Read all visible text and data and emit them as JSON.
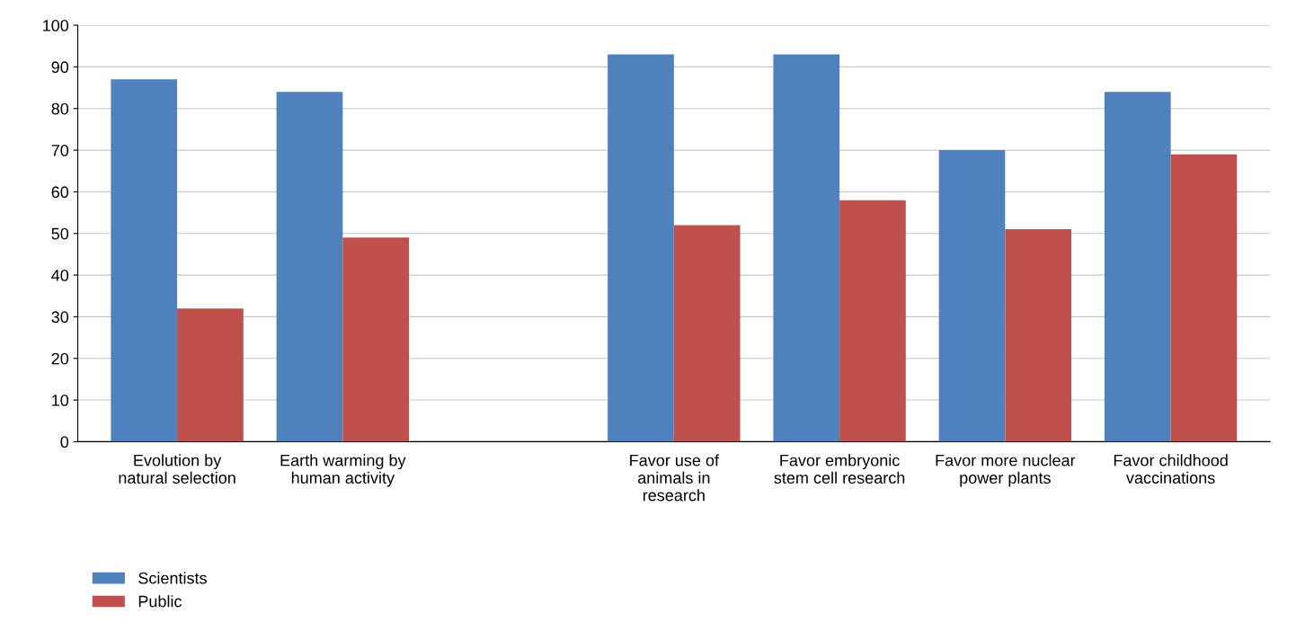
{
  "chart_data": {
    "type": "bar",
    "categories": [
      "Evolution by natural selection",
      "Earth warming by human activity",
      null,
      "Favor use of animals in research",
      "Favor embryonic stem cell research",
      "Favor more nuclear power plants",
      "Favor childhood vaccinations"
    ],
    "series": [
      {
        "name": "Scientists",
        "color": "#4f81bd",
        "values": [
          87,
          84,
          null,
          93,
          93,
          70,
          84
        ]
      },
      {
        "name": "Public",
        "color": "#c0504d",
        "values": [
          32,
          49,
          null,
          52,
          58,
          51,
          69
        ]
      }
    ],
    "ylim": [
      0,
      100
    ],
    "yticks": [
      0,
      10,
      20,
      30,
      40,
      50,
      60,
      70,
      80,
      90,
      100
    ],
    "grid": "y",
    "legend": "bottom left"
  }
}
